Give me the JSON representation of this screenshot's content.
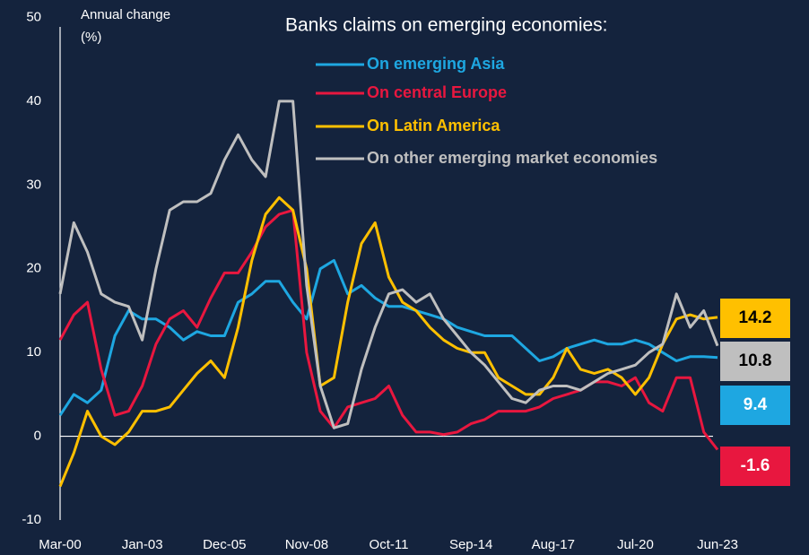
{
  "chart_data": {
    "type": "line",
    "title": "Banks claims on emerging economies:",
    "y_label": [
      "Annual change",
      "(%)"
    ],
    "categories": [
      "Mar-00",
      null,
      null,
      null,
      null,
      null,
      "Jan-03",
      null,
      null,
      null,
      null,
      null,
      "Dec-05",
      null,
      null,
      null,
      null,
      null,
      "Nov-08",
      null,
      null,
      null,
      null,
      null,
      "Oct-11",
      null,
      null,
      null,
      null,
      null,
      "Sep-14",
      null,
      null,
      null,
      null,
      null,
      "Aug-17",
      null,
      null,
      null,
      null,
      null,
      "Jul-20",
      null,
      null,
      null,
      null,
      null,
      "Jun-23"
    ],
    "ylim": [
      -10,
      50
    ],
    "yticks": [
      -10,
      0,
      10,
      20,
      30,
      40,
      50
    ],
    "series": [
      {
        "name": "On emerging Asia",
        "color": "#1ea7e1",
        "values": [
          2.5,
          5,
          4,
          5.5,
          12,
          15,
          14,
          14,
          13,
          11.5,
          12.5,
          12,
          12,
          16,
          17,
          18.5,
          18.5,
          16,
          14,
          20,
          21,
          17,
          18,
          16.5,
          15.5,
          15.5,
          15,
          14.5,
          14,
          13,
          12.5,
          12,
          12,
          12,
          10.5,
          9,
          9.5,
          10.5,
          11,
          11.5,
          11,
          11,
          11.5,
          11,
          10,
          9,
          9.5,
          9.5,
          9.4
        ]
      },
      {
        "name": "On central Europe",
        "color": "#e8173f",
        "values": [
          11.5,
          14.5,
          16,
          8,
          2.5,
          3,
          6,
          11,
          14,
          15,
          13,
          16.5,
          19.5,
          19.5,
          22,
          25,
          26.5,
          27,
          10,
          3,
          1,
          3.5,
          4,
          4.5,
          6,
          2.5,
          0.5,
          0.5,
          0.2,
          0.5,
          1.5,
          2,
          3,
          3,
          3,
          3.5,
          4.5,
          5,
          5.5,
          6.5,
          6.5,
          6,
          7,
          4,
          3,
          7,
          7,
          0.5,
          -1.6
        ]
      },
      {
        "name": "On Latin America",
        "color": "#ffc000",
        "values": [
          -6,
          -2,
          3,
          0,
          -1,
          0.5,
          3,
          3,
          3.5,
          5.5,
          7.5,
          9,
          7,
          13,
          21,
          26.5,
          28.5,
          27,
          20,
          6,
          7,
          16,
          23,
          25.5,
          19,
          16,
          15,
          13,
          11.5,
          10.5,
          10,
          10,
          7,
          6,
          5,
          5,
          7,
          10.5,
          8,
          7.5,
          8,
          7,
          5,
          7,
          11,
          14,
          14.5,
          14,
          14.2
        ]
      },
      {
        "name": "On other emerging market economies",
        "color": "#bfbfbf",
        "values": [
          17,
          25.5,
          22,
          17,
          16,
          15.5,
          11.5,
          20,
          27,
          28,
          28,
          29,
          33,
          36,
          33,
          31,
          40,
          40,
          18,
          6,
          1,
          1.5,
          8,
          13,
          17,
          17.5,
          16,
          17,
          14,
          12,
          10,
          8.5,
          6.5,
          4.5,
          4,
          5.5,
          6,
          6,
          5.5,
          6.5,
          7.5,
          8,
          8.5,
          10,
          11,
          17,
          13,
          15,
          10.8
        ]
      }
    ]
  }
}
